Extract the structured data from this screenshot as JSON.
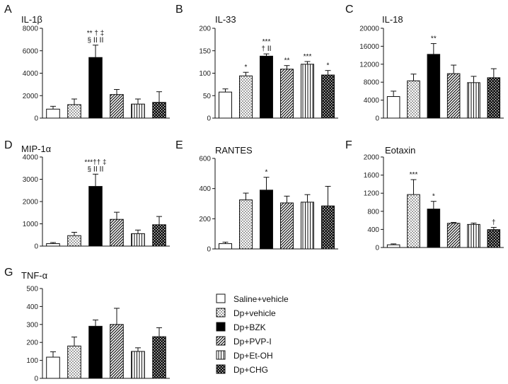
{
  "figure": {
    "series_names": [
      "Saline+vehicle",
      "Dp+vehicle",
      "Dp+BZK",
      "Dp+PVP-I",
      "Dp+Et-OH",
      "Dp+CHG"
    ]
  },
  "chart_data": [
    {
      "type": "bar",
      "letter": "A",
      "title": "IL-1β",
      "categories": [
        "Saline+vehicle",
        "Dp+vehicle",
        "Dp+BZK",
        "Dp+PVP-I",
        "Dp+Et-OH",
        "Dp+CHG"
      ],
      "values": [
        800,
        1200,
        5400,
        2100,
        1250,
        1400
      ],
      "errors": [
        250,
        500,
        1100,
        450,
        450,
        950
      ],
      "ylim": [
        0,
        8000
      ],
      "yticks": [
        0,
        2000,
        4000,
        6000,
        8000
      ],
      "annotations": [
        {
          "bar": 2,
          "lines": [
            "** † ‡",
            "§ ⅠⅠ ⅠⅠ"
          ]
        }
      ]
    },
    {
      "type": "bar",
      "letter": "B",
      "title": "IL-33",
      "categories": [
        "Saline+vehicle",
        "Dp+vehicle",
        "Dp+BZK",
        "Dp+PVP-I",
        "Dp+Et-OH",
        "Dp+CHG"
      ],
      "values": [
        58,
        94,
        138,
        109,
        120,
        96
      ],
      "errors": [
        7,
        8,
        5,
        8,
        6,
        10
      ],
      "ylim": [
        0,
        200
      ],
      "yticks": [
        0,
        50,
        100,
        150,
        200
      ],
      "annotations": [
        {
          "bar": 1,
          "lines": [
            "*"
          ]
        },
        {
          "bar": 2,
          "lines": [
            "***",
            "† ⅠⅠ"
          ]
        },
        {
          "bar": 3,
          "lines": [
            "**"
          ]
        },
        {
          "bar": 4,
          "lines": [
            "***"
          ]
        },
        {
          "bar": 5,
          "lines": [
            "*"
          ]
        }
      ]
    },
    {
      "type": "bar",
      "letter": "C",
      "title": "IL-18",
      "categories": [
        "Saline+vehicle",
        "Dp+vehicle",
        "Dp+BZK",
        "Dp+PVP-I",
        "Dp+Et-OH",
        "Dp+CHG"
      ],
      "values": [
        4800,
        8300,
        14200,
        9900,
        7900,
        9000
      ],
      "errors": [
        1200,
        1500,
        2400,
        1900,
        1400,
        2000
      ],
      "ylim": [
        0,
        20000
      ],
      "yticks": [
        0,
        4000,
        8000,
        12000,
        16000,
        20000
      ],
      "annotations": [
        {
          "bar": 2,
          "lines": [
            "**"
          ]
        }
      ]
    },
    {
      "type": "bar",
      "letter": "D",
      "title": "MIP-1α",
      "categories": [
        "Saline+vehicle",
        "Dp+vehicle",
        "Dp+BZK",
        "Dp+PVP-I",
        "Dp+Et-OH",
        "Dp+CHG"
      ],
      "values": [
        110,
        470,
        2680,
        1200,
        560,
        960
      ],
      "errors": [
        50,
        150,
        550,
        320,
        160,
        370
      ],
      "ylim": [
        0,
        4000
      ],
      "yticks": [
        0,
        1000,
        2000,
        3000,
        4000
      ],
      "annotations": [
        {
          "bar": 2,
          "lines": [
            "***†† ‡",
            "§ ⅠⅠ ⅠⅠ"
          ]
        }
      ]
    },
    {
      "type": "bar",
      "letter": "E",
      "title": "RANTES",
      "categories": [
        "Saline+vehicle",
        "Dp+vehicle",
        "Dp+BZK",
        "Dp+PVP-I",
        "Dp+Et-OH",
        "Dp+CHG"
      ],
      "values": [
        35,
        325,
        390,
        305,
        310,
        285
      ],
      "errors": [
        10,
        45,
        85,
        45,
        50,
        130
      ],
      "ylim": [
        0,
        600
      ],
      "yticks": [
        0,
        200,
        400,
        600
      ],
      "annotations": [
        {
          "bar": 2,
          "lines": [
            "*"
          ]
        }
      ]
    },
    {
      "type": "bar",
      "letter": "F",
      "title": "Eotaxin",
      "categories": [
        "Saline+vehicle",
        "Dp+vehicle",
        "Dp+BZK",
        "Dp+PVP-I",
        "Dp+Et-OH",
        "Dp+CHG"
      ],
      "values": [
        60,
        1170,
        850,
        535,
        510,
        395
      ],
      "errors": [
        20,
        330,
        170,
        20,
        30,
        50
      ],
      "ylim": [
        0,
        2000
      ],
      "yticks": [
        0,
        400,
        800,
        1200,
        1600,
        2000
      ],
      "annotations": [
        {
          "bar": 1,
          "lines": [
            "***"
          ]
        },
        {
          "bar": 2,
          "lines": [
            "*"
          ]
        },
        {
          "bar": 5,
          "lines": [
            "†"
          ]
        }
      ]
    },
    {
      "type": "bar",
      "letter": "G",
      "title": "TNF-α",
      "categories": [
        "Saline+vehicle",
        "Dp+vehicle",
        "Dp+BZK",
        "Dp+PVP-I",
        "Dp+Et-OH",
        "Dp+CHG"
      ],
      "values": [
        118,
        180,
        290,
        300,
        150,
        232
      ],
      "errors": [
        30,
        50,
        35,
        90,
        20,
        50
      ],
      "ylim": [
        0,
        500
      ],
      "yticks": [
        0,
        100,
        200,
        300,
        400,
        500
      ],
      "annotations": []
    }
  ]
}
